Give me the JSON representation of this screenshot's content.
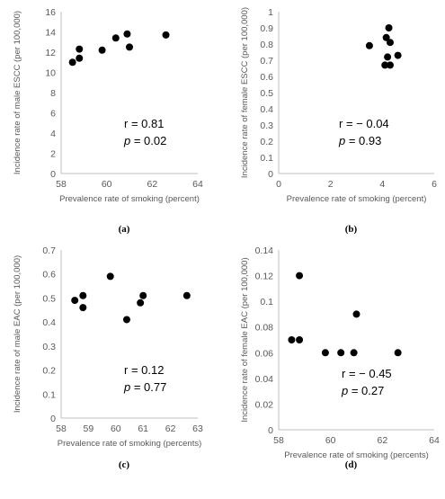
{
  "chart_data": [
    {
      "type": "scatter",
      "panel_label": "(a)",
      "xlabel": "Prevalence rate of smoking (percent)",
      "ylabel": "Incidence rate of male ESCC  (per 100,000)",
      "xlim": [
        58,
        64
      ],
      "ylim": [
        0,
        16
      ],
      "xticks": [
        "58",
        "60",
        "62",
        "64"
      ],
      "yticks": [
        "0",
        "2",
        "4",
        "6",
        "8",
        "10",
        "12",
        "14",
        "16"
      ],
      "points": [
        {
          "x": 58.5,
          "y": 11.0
        },
        {
          "x": 58.8,
          "y": 11.4
        },
        {
          "x": 58.8,
          "y": 12.3
        },
        {
          "x": 59.8,
          "y": 12.2
        },
        {
          "x": 60.4,
          "y": 13.4
        },
        {
          "x": 60.9,
          "y": 13.8
        },
        {
          "x": 61.0,
          "y": 12.5
        },
        {
          "x": 62.6,
          "y": 13.7
        }
      ],
      "stat_r": "r = 0.81",
      "stat_p_letter": "p",
      "stat_p_value": " = 0.02",
      "grid": false
    },
    {
      "type": "scatter",
      "panel_label": "(b)",
      "xlabel": "Prevalence rate of smoking (percent)",
      "ylabel": "Incidence rate of female ESCC  (per 100,000)",
      "xlim": [
        0,
        6
      ],
      "ylim": [
        0,
        1
      ],
      "xticks": [
        "0",
        "2",
        "4",
        "6"
      ],
      "yticks": [
        "0",
        "0.1",
        "0.2",
        "0.3",
        "0.4",
        "0.5",
        "0.6",
        "0.7",
        "0.8",
        "0.9",
        "1"
      ],
      "points": [
        {
          "x": 3.5,
          "y": 0.79
        },
        {
          "x": 4.1,
          "y": 0.67
        },
        {
          "x": 4.15,
          "y": 0.84
        },
        {
          "x": 4.2,
          "y": 0.72
        },
        {
          "x": 4.25,
          "y": 0.9
        },
        {
          "x": 4.3,
          "y": 0.81
        },
        {
          "x": 4.3,
          "y": 0.67
        },
        {
          "x": 4.6,
          "y": 0.73
        }
      ],
      "stat_r": "r = − 0.04",
      "stat_p_letter": "p",
      "stat_p_value": " = 0.93",
      "grid": false
    },
    {
      "type": "scatter",
      "panel_label": "(c)",
      "xlabel": "Prevalence rate of smoking (percents)",
      "ylabel": "Incidence rate of male EAC  (per 100,000)",
      "xlim": [
        58,
        63
      ],
      "ylim": [
        0,
        0.7
      ],
      "xticks": [
        "58",
        "59",
        "60",
        "61",
        "62",
        "63"
      ],
      "yticks": [
        "0",
        "0.1",
        "0.2",
        "0.3",
        "0.4",
        "0.5",
        "0.6",
        "0.7"
      ],
      "points": [
        {
          "x": 58.5,
          "y": 0.49
        },
        {
          "x": 58.8,
          "y": 0.51
        },
        {
          "x": 58.8,
          "y": 0.46
        },
        {
          "x": 59.8,
          "y": 0.59
        },
        {
          "x": 60.4,
          "y": 0.41
        },
        {
          "x": 60.9,
          "y": 0.48
        },
        {
          "x": 61.0,
          "y": 0.51
        },
        {
          "x": 62.6,
          "y": 0.51
        }
      ],
      "stat_r": "r = 0.12",
      "stat_p_letter": "p",
      "stat_p_value": " = 0.77",
      "grid": false
    },
    {
      "type": "scatter",
      "panel_label": "(d)",
      "xlabel": "Prevalence rate of smoking (percents)",
      "ylabel": "Incidence rate of female EAC  (per 100,000)",
      "xlim": [
        58,
        64
      ],
      "ylim": [
        0,
        0.14
      ],
      "xticks": [
        "58",
        "60",
        "62",
        "64"
      ],
      "yticks": [
        "0",
        "0.02",
        "0.04",
        "0.06",
        "0.08",
        "0.1",
        "0.12",
        "0.14"
      ],
      "points": [
        {
          "x": 58.5,
          "y": 0.07
        },
        {
          "x": 58.8,
          "y": 0.07
        },
        {
          "x": 58.8,
          "y": 0.12
        },
        {
          "x": 59.8,
          "y": 0.06
        },
        {
          "x": 60.4,
          "y": 0.06
        },
        {
          "x": 60.9,
          "y": 0.06
        },
        {
          "x": 61.0,
          "y": 0.09
        },
        {
          "x": 62.6,
          "y": 0.06
        }
      ],
      "stat_r": "r = − 0.45",
      "stat_p_letter": "p",
      "stat_p_value": " = 0.27",
      "grid": false
    }
  ]
}
